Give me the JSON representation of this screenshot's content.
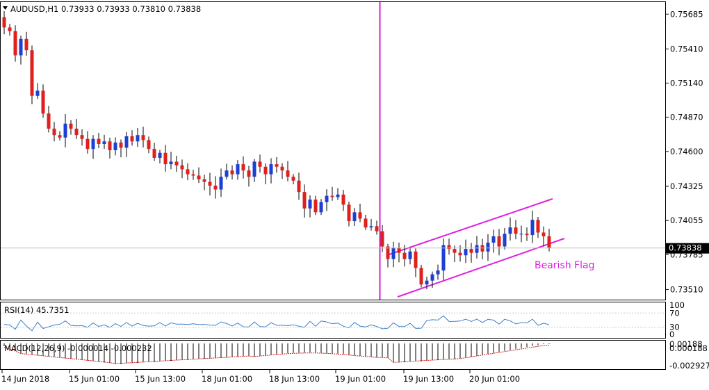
{
  "header": {
    "symbol_line": "AUDUSD,H1  0.73933 0.73933 0.73810 0.73838"
  },
  "price_panel": {
    "ticks": [
      "0.75685",
      "0.75410",
      "0.75140",
      "0.74870",
      "0.74600",
      "0.74325",
      "0.74055",
      "0.73785",
      "0.73510"
    ],
    "current_price": "0.73838",
    "annotation": "Bearish Flag"
  },
  "rsi_panel": {
    "label": "RSI(14) 45.7351",
    "ticks": [
      "100",
      "70",
      "30",
      "0"
    ]
  },
  "macd_panel": {
    "label": "MACD(12,26,9) -0.000014 -0.000232",
    "ticks": [
      "0.00188",
      "0.000188",
      "-0.002927"
    ]
  },
  "time_axis": {
    "labels": [
      "14 Jun 2018",
      "15 Jun 01:00",
      "15 Jun 13:00",
      "18 Jun 01:00",
      "18 Jun 13:00",
      "19 Jun 01:00",
      "19 Jun 13:00",
      "20 Jun 01:00"
    ]
  },
  "colors": {
    "bull": "#1c3fd6",
    "bear": "#e0201c",
    "channel": "#e020e0",
    "rsi_line": "#3b7fc4",
    "macd_signal": "#d02020",
    "vline": "#d21fd2"
  },
  "chart_data": {
    "type": "candlestick",
    "symbol": "AUDUSD",
    "timeframe": "H1",
    "ylim": [
      0.7343,
      0.7578
    ],
    "closes": [
      0.7558,
      0.7555,
      0.7536,
      0.7549,
      0.754,
      0.7504,
      0.7508,
      0.749,
      0.7478,
      0.7473,
      0.7471,
      0.7482,
      0.7478,
      0.7473,
      0.747,
      0.7462,
      0.747,
      0.7466,
      0.7468,
      0.7461,
      0.7467,
      0.7463,
      0.7472,
      0.7468,
      0.7473,
      0.7469,
      0.7462,
      0.7455,
      0.7459,
      0.745,
      0.7452,
      0.7449,
      0.7446,
      0.7442,
      0.7441,
      0.7438,
      0.7436,
      0.7433,
      0.743,
      0.744,
      0.7445,
      0.7442,
      0.745,
      0.7445,
      0.744,
      0.7452,
      0.7448,
      0.7442,
      0.745,
      0.7448,
      0.7445,
      0.744,
      0.7437,
      0.7428,
      0.7415,
      0.7422,
      0.7412,
      0.742,
      0.7425,
      0.7424,
      0.7426,
      0.7418,
      0.7405,
      0.7412,
      0.7407,
      0.74,
      0.7401,
      0.7397,
      0.7385,
      0.7375,
      0.7384,
      0.738,
      0.7375,
      0.7381,
      0.7368,
      0.7355,
      0.7358,
      0.7363,
      0.7366,
      0.7386,
      0.7383,
      0.738,
      0.7378,
      0.7383,
      0.738,
      0.7386,
      0.7381,
      0.7388,
      0.7393,
      0.7385,
      0.7395,
      0.74,
      0.7395,
      0.7395,
      0.7394,
      0.7406,
      0.7396,
      0.7393,
      0.7384
    ]
  }
}
